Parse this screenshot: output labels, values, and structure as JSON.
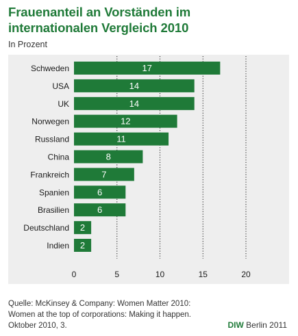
{
  "header": {
    "title_line1": "Frauenanteil an Vorständen im",
    "title_line2": "internationalen Vergleich 2010",
    "subtitle": "In Prozent"
  },
  "footer": {
    "source_line1": "Quelle: McKinsey & Company: Women Matter 2010:",
    "source_line2": "Women at the top of corporations: Making it happen.",
    "source_line3": "Oktober 2010, 3.",
    "brand": "DIW",
    "credit": "Berlin 2011"
  },
  "colors": {
    "bar": "#1f7a38",
    "bar_label": "#ffffff",
    "title": "#1f7a38",
    "panel_background": "#eeeeee",
    "gridline": "#1a1a1a"
  },
  "chart_data": {
    "type": "bar",
    "orientation": "horizontal",
    "title": "Frauenanteil an Vorständen im internationalen Vergleich 2010",
    "subtitle": "In Prozent",
    "categories": [
      "Schweden",
      "USA",
      "UK",
      "Norwegen",
      "Russland",
      "China",
      "Frankreich",
      "Spanien",
      "Brasilien",
      "Deutschland",
      "Indien"
    ],
    "values": [
      17,
      14,
      14,
      12,
      11,
      8,
      7,
      6,
      6,
      2,
      2
    ],
    "data_labels": [
      "17",
      "14",
      "14",
      "12",
      "11",
      "8",
      "7",
      "6",
      "6",
      "2",
      "2"
    ],
    "xlabel": "",
    "ylabel": "",
    "xlim": [
      0,
      20
    ],
    "xticks": [
      0,
      5,
      10,
      15,
      20
    ],
    "xtick_labels": [
      "0",
      "5",
      "10",
      "15",
      "20"
    ],
    "grid": "vertical dotted"
  }
}
